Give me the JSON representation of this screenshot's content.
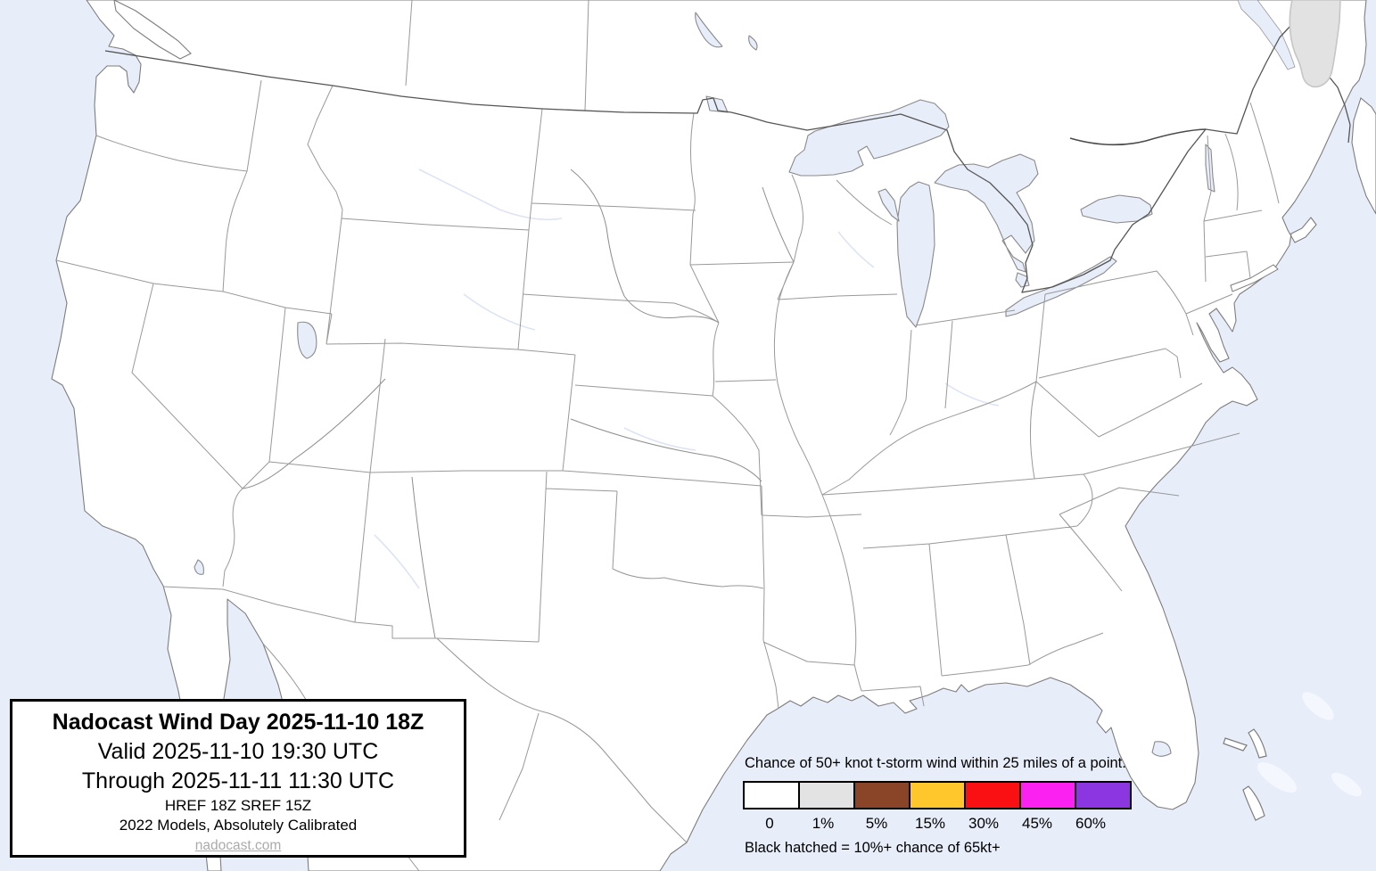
{
  "title_box": {
    "title": "Nadocast Wind Day 2025-11-10 18Z",
    "valid_line": "Valid 2025-11-10 19:30 UTC",
    "through_line": "Through 2025-11-11 11:30 UTC",
    "models_line": "HREF 18Z SREF 15Z",
    "calibration_line": "2022 Models, Absolutely Calibrated",
    "website": "nadocast.com"
  },
  "legend": {
    "title": "Chance of 50+ knot t-storm wind within 25 miles of a point.",
    "items": [
      {
        "label": "0",
        "color": "#ffffff"
      },
      {
        "label": "1%",
        "color": "#e3e3e3"
      },
      {
        "label": "5%",
        "color": "#8a4529"
      },
      {
        "label": "15%",
        "color": "#ffc72c"
      },
      {
        "label": "30%",
        "color": "#fa0f12"
      },
      {
        "label": "45%",
        "color": "#fb21f0"
      },
      {
        "label": "60%",
        "color": "#8b36e0"
      }
    ],
    "note": "Black hatched = 10%+ chance of 65kt+"
  },
  "map": {
    "colors": {
      "water": "#e8edfa",
      "land": "#ffffff",
      "state_line": "#999999",
      "national_line": "#555555",
      "lake_outline": "#8a8a8a",
      "prob_1pct_fill": "#e2e2e2",
      "prob_1pct_edge": "#c6c6c6"
    }
  }
}
